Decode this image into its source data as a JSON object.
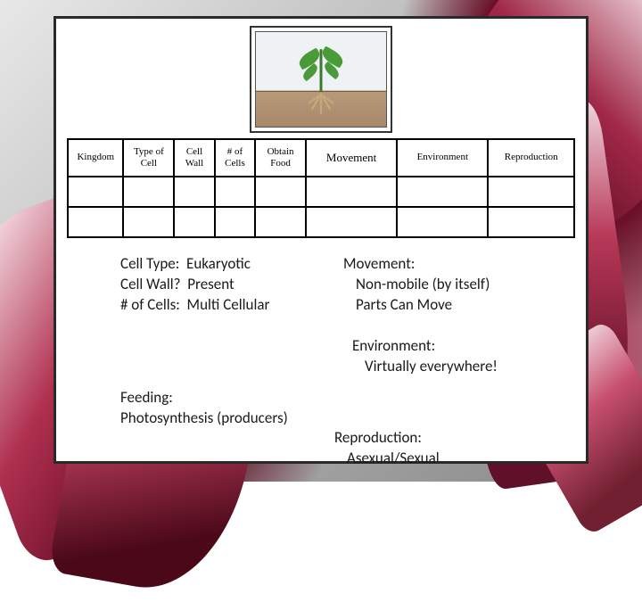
{
  "background": {
    "petal_colors": [
      "#8a1830",
      "#b03050",
      "#5a0820",
      "#f0d0d8",
      "#ffffff"
    ],
    "card_bg": "#ffffff",
    "card_border": "#2a2a2a"
  },
  "plant_illustration": {
    "sky_color": "#eef2f5",
    "soil_color": "#b89a7a",
    "stem_color": "#3a7a2a",
    "leaf_color": "#4a9a3a",
    "root_color": "#c9a97a"
  },
  "table": {
    "headers": [
      "Kingdom",
      "Type of Cell",
      "Cell Wall",
      "# of Cells",
      "Obtain Food",
      "Movement",
      "Environment",
      "Reproduction"
    ],
    "column_widths_pct": [
      11,
      10,
      8,
      8,
      10,
      18,
      18,
      17
    ],
    "border_color": "#000000",
    "header_fontsize": 11,
    "empty_rows": 2
  },
  "facts": {
    "cell_type": {
      "label": "Cell Type:",
      "value": "Eukaryotic"
    },
    "cell_wall": {
      "label": "Cell Wall?",
      "value": "Present"
    },
    "num_cells": {
      "label": "# of Cells:",
      "value": "Multi Cellular"
    },
    "movement": {
      "label": "Movement:",
      "line1": "Non-mobile (by itself)",
      "line2": "Parts Can Move"
    },
    "environment": {
      "label": "Environment:",
      "value": "Virtually everywhere!"
    },
    "feeding": {
      "label": "Feeding:",
      "value": "Photosynthesis (producers)"
    },
    "reproduction": {
      "label": "Reproduction:",
      "value": "Asexual/Sexual"
    },
    "font_family": "Calibri",
    "font_size_pt": 13,
    "text_color": "#1a1a1a"
  }
}
